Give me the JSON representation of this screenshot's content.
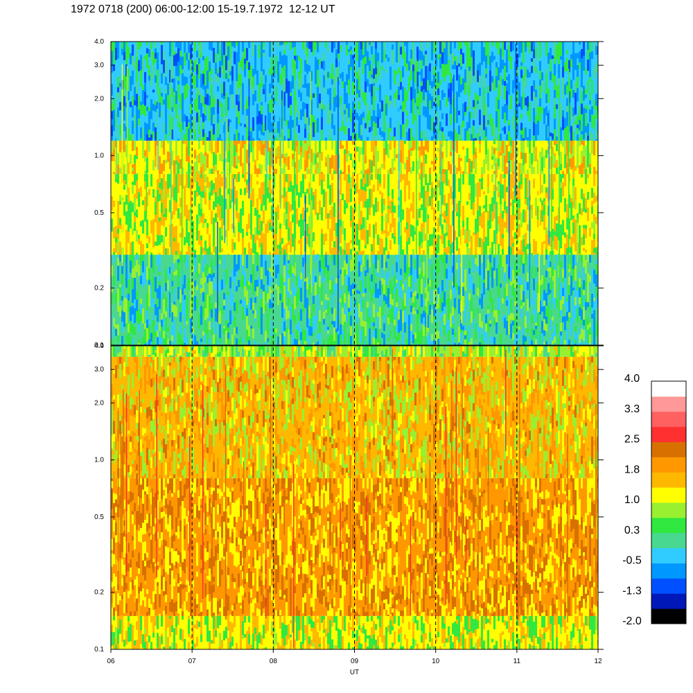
{
  "title": "1972 0718 (200) 06:00-12:00 15-19.7.1972  12-12 UT",
  "chart_data": {
    "type": "heatmap",
    "title": "1972 0718 (200) 06:00-12:00 15-19.7.1972  12-12 UT",
    "xlabel": "UT",
    "x_tick_labels": [
      "06",
      "07",
      "08",
      "09",
      "10",
      "11",
      "12"
    ],
    "x_range": [
      "06",
      "12"
    ],
    "y_scale": "log",
    "y_tick_labels": [
      "0.1",
      "0.2",
      "0.5",
      "1.0",
      "2.0",
      "3.0",
      "4.0"
    ],
    "y_ticks": [
      0.1,
      0.2,
      0.5,
      1.0,
      2.0,
      3.0,
      4.0
    ],
    "y_range": [
      0.1,
      4.0
    ],
    "dashed_vertical_lines_at": [
      "07",
      "08",
      "09",
      "10",
      "11"
    ],
    "panels": [
      {
        "position": "top",
        "dominant_levels": [
          {
            "y_range": [
              0.1,
              0.3
            ],
            "level": 0.0
          },
          {
            "y_range": [
              0.3,
              0.8
            ],
            "level": 1.0
          },
          {
            "y_range": [
              0.8,
              1.2
            ],
            "level": 1.3
          },
          {
            "y_range": [
              1.2,
              4.0
            ],
            "level": -0.3
          }
        ]
      },
      {
        "position": "bottom",
        "dominant_levels": [
          {
            "y_range": [
              0.1,
              0.15
            ],
            "level": 1.0
          },
          {
            "y_range": [
              0.15,
              0.8
            ],
            "level": 1.8
          },
          {
            "y_range": [
              0.8,
              3.5
            ],
            "level": 1.5
          },
          {
            "y_range": [
              3.5,
              4.0
            ],
            "level": 0.8
          }
        ]
      }
    ],
    "colorbar": {
      "labels": [
        "4.0",
        "3.3",
        "2.5",
        "1.8",
        "1.0",
        "0.3",
        "-0.5",
        "-1.3",
        "-2.0"
      ],
      "colors": [
        "#000000",
        "#0018b8",
        "#0050ff",
        "#0098ff",
        "#30ccff",
        "#48d890",
        "#30e840",
        "#98f030",
        "#ffff00",
        "#ffb800",
        "#ff9800",
        "#d87000",
        "#ff3030",
        "#ff6060",
        "#ff9898",
        "#ffffff"
      ]
    }
  }
}
